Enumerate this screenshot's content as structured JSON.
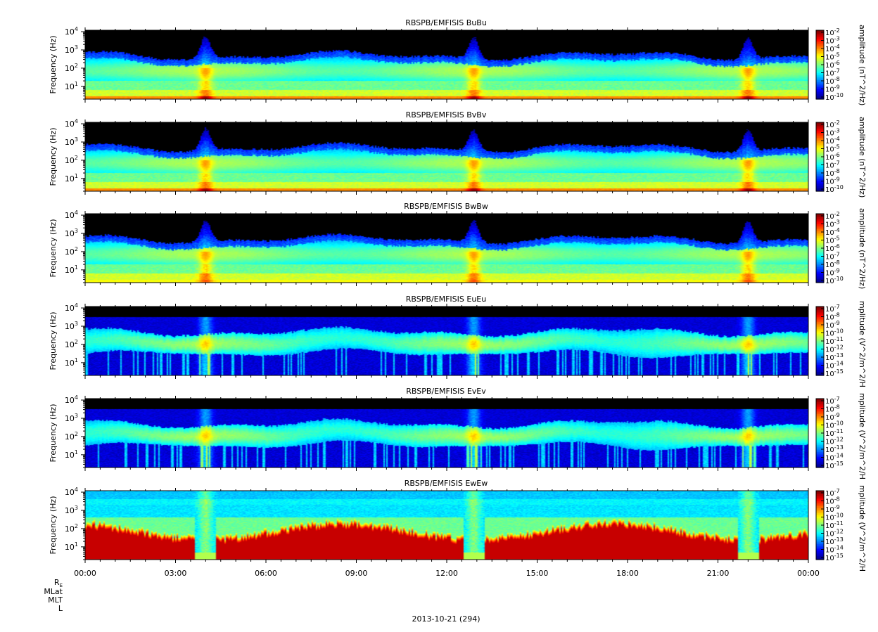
{
  "chart_data": [
    {
      "type": "heatmap",
      "title": "RBSPB/EMFISIS  BuBu",
      "ylabel": "Frequency (Hz)",
      "yscale": "log",
      "ylim": [
        2,
        12000
      ],
      "yticks": [
        {
          "base": "10",
          "exp": "1",
          "value": 10
        },
        {
          "base": "10",
          "exp": "2",
          "value": 100
        },
        {
          "base": "10",
          "exp": "3",
          "value": 1000
        },
        {
          "base": "10",
          "exp": "4",
          "value": 10000
        }
      ],
      "colorbar": {
        "label": "amplitude (nT^2/Hz)",
        "exponents": [
          "-2",
          "-3",
          "-4",
          "-5",
          "-6",
          "-7",
          "-8",
          "-9",
          "-10"
        ]
      },
      "kind": "B",
      "variant": 0,
      "events": [
        4.0,
        12.9,
        22.0
      ]
    },
    {
      "type": "heatmap",
      "title": "RBSPB/EMFISIS  BvBv",
      "ylabel": "Frequency (Hz)",
      "yscale": "log",
      "ylim": [
        2,
        12000
      ],
      "yticks": [
        {
          "base": "10",
          "exp": "1",
          "value": 10
        },
        {
          "base": "10",
          "exp": "2",
          "value": 100
        },
        {
          "base": "10",
          "exp": "3",
          "value": 1000
        },
        {
          "base": "10",
          "exp": "4",
          "value": 10000
        }
      ],
      "colorbar": {
        "label": "amplitude (nT^2/Hz)",
        "exponents": [
          "-2",
          "-3",
          "-4",
          "-5",
          "-6",
          "-7",
          "-8",
          "-9",
          "-10"
        ]
      },
      "kind": "B",
      "variant": 1,
      "events": [
        4.0,
        12.9,
        22.0
      ]
    },
    {
      "type": "heatmap",
      "title": "RBSPB/EMFISIS  BwBw",
      "ylabel": "Frequency (Hz)",
      "yscale": "log",
      "ylim": [
        2,
        12000
      ],
      "yticks": [
        {
          "base": "10",
          "exp": "1",
          "value": 10
        },
        {
          "base": "10",
          "exp": "2",
          "value": 100
        },
        {
          "base": "10",
          "exp": "3",
          "value": 1000
        },
        {
          "base": "10",
          "exp": "4",
          "value": 10000
        }
      ],
      "colorbar": {
        "label": "amplitude (nT^2/Hz)",
        "exponents": [
          "-2",
          "-3",
          "-4",
          "-5",
          "-6",
          "-7",
          "-8",
          "-9",
          "-10"
        ]
      },
      "kind": "B",
      "variant": 2,
      "events": [
        4.0,
        12.9,
        22.0
      ]
    },
    {
      "type": "heatmap",
      "title": "RBSPB/EMFISIS  EuEu",
      "ylabel": "Frequency (Hz)",
      "yscale": "log",
      "ylim": [
        2,
        12000
      ],
      "yticks": [
        {
          "base": "10",
          "exp": "1",
          "value": 10
        },
        {
          "base": "10",
          "exp": "2",
          "value": 100
        },
        {
          "base": "10",
          "exp": "3",
          "value": 1000
        },
        {
          "base": "10",
          "exp": "4",
          "value": 10000
        }
      ],
      "colorbar": {
        "label": "mplitude (V^2/m^2/H",
        "exponents": [
          "-7",
          "-8",
          "-9",
          "-10",
          "-11",
          "-12",
          "-13",
          "-14",
          "-15"
        ]
      },
      "kind": "E",
      "variant": 0,
      "events": [
        4.0,
        12.9,
        22.0
      ]
    },
    {
      "type": "heatmap",
      "title": "RBSPB/EMFISIS  EvEv",
      "ylabel": "Frequency (Hz)",
      "yscale": "log",
      "ylim": [
        2,
        12000
      ],
      "yticks": [
        {
          "base": "10",
          "exp": "1",
          "value": 10
        },
        {
          "base": "10",
          "exp": "2",
          "value": 100
        },
        {
          "base": "10",
          "exp": "3",
          "value": 1000
        },
        {
          "base": "10",
          "exp": "4",
          "value": 10000
        }
      ],
      "colorbar": {
        "label": "mplitude (V^2/m^2/H",
        "exponents": [
          "-7",
          "-8",
          "-9",
          "-10",
          "-11",
          "-12",
          "-13",
          "-14",
          "-15"
        ]
      },
      "kind": "E",
      "variant": 1,
      "events": [
        4.0,
        12.9,
        22.0
      ]
    },
    {
      "type": "heatmap",
      "title": "RBSPB/EMFISIS  EwEw",
      "ylabel": "Frequency (Hz)",
      "yscale": "log",
      "ylim": [
        2,
        12000
      ],
      "yticks": [
        {
          "base": "10",
          "exp": "1",
          "value": 10
        },
        {
          "base": "10",
          "exp": "2",
          "value": 100
        },
        {
          "base": "10",
          "exp": "3",
          "value": 1000
        },
        {
          "base": "10",
          "exp": "4",
          "value": 10000
        }
      ],
      "colorbar": {
        "label": "mplitude (V^2/m^2/H",
        "exponents": [
          "-7",
          "-8",
          "-9",
          "-10",
          "-11",
          "-12",
          "-13",
          "-14",
          "-15"
        ]
      },
      "kind": "Ew",
      "variant": 0,
      "events": [
        4.0,
        12.9,
        22.0
      ]
    }
  ],
  "x_axis": {
    "range_hours": [
      0,
      24
    ],
    "tick_labels": [
      "00:00",
      "03:00",
      "06:00",
      "09:00",
      "12:00",
      "15:00",
      "18:00",
      "21:00",
      "00:00"
    ],
    "ephemeris_labels": {
      "re": "R",
      "re_sub": "E",
      "mlat": "MLat",
      "mlt": "MLT",
      "l": "L"
    },
    "date_label": "2013-10-21 (294)"
  },
  "colors": {
    "jet": [
      "#00008f",
      "#0000ff",
      "#007fff",
      "#00ffff",
      "#7fff7f",
      "#ffff00",
      "#ff7f00",
      "#ff0000",
      "#7f0000"
    ],
    "no_data": "#000000"
  }
}
